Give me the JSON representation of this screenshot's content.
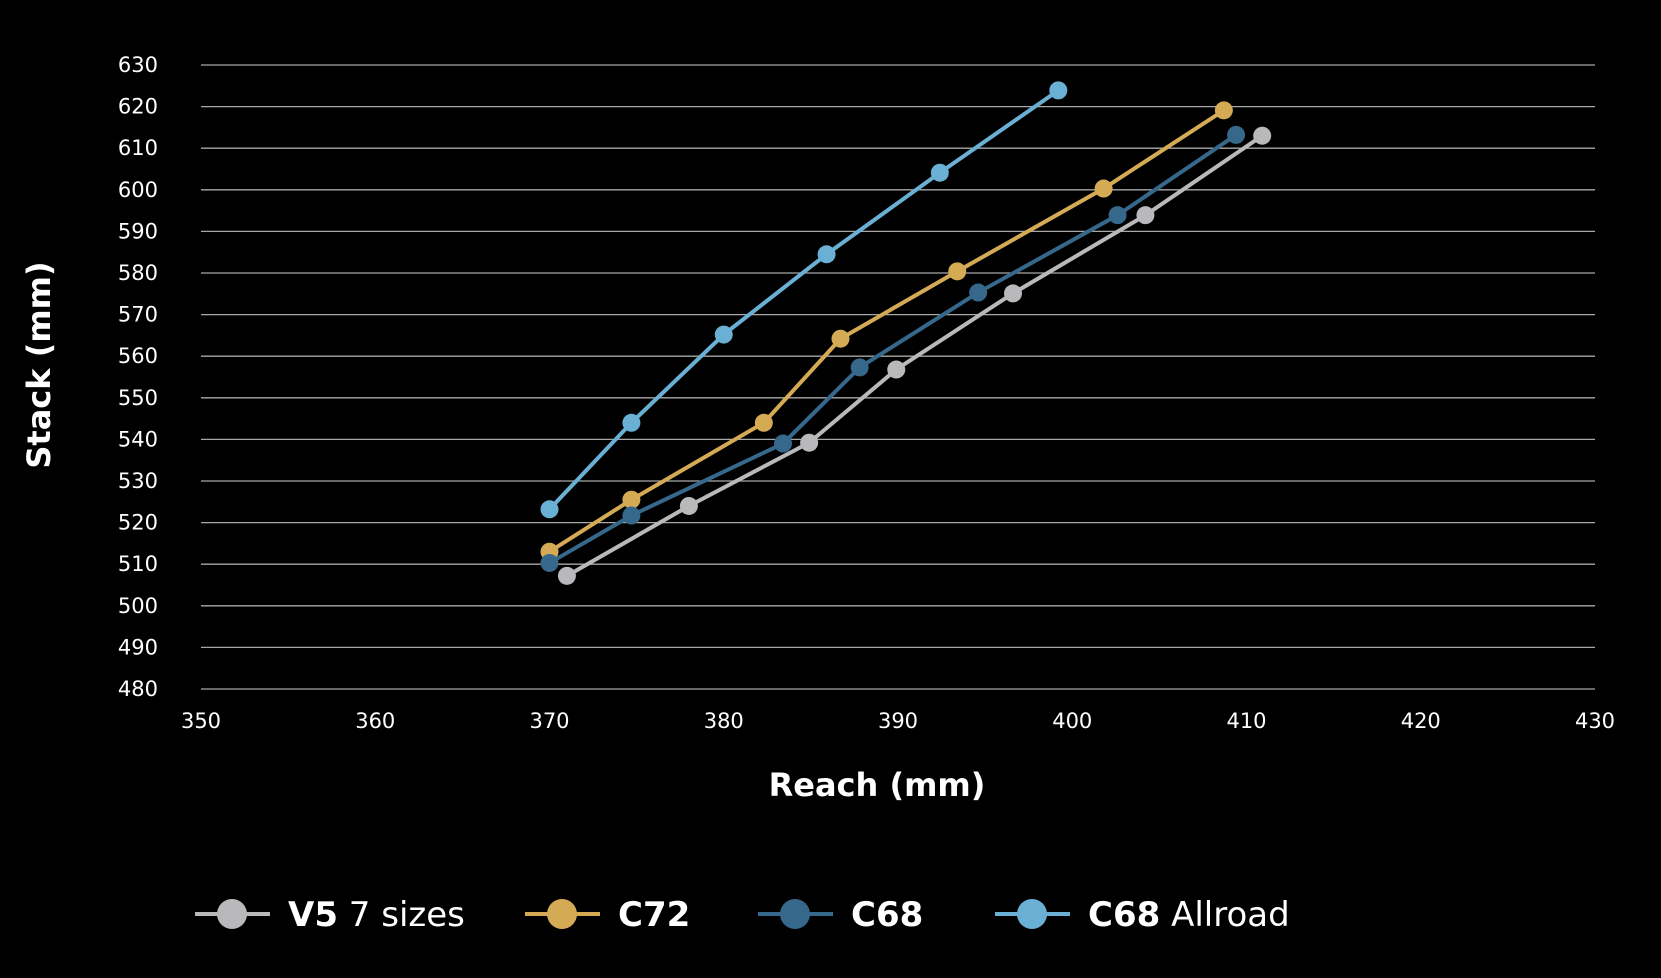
{
  "chart_data": {
    "type": "line",
    "title": "",
    "xlabel": "Reach (mm)",
    "ylabel": "Stack (mm)",
    "xlim": [
      350,
      430
    ],
    "ylim": [
      480,
      630
    ],
    "xticks": [
      350,
      360,
      370,
      380,
      390,
      400,
      410,
      420,
      430
    ],
    "yticks": [
      480,
      490,
      500,
      510,
      520,
      530,
      540,
      550,
      560,
      570,
      580,
      590,
      600,
      610,
      620,
      630
    ],
    "grid": "horizontal",
    "legend_position": "bottom",
    "series": [
      {
        "name": "V5 7 sizes",
        "name_bold": "V5",
        "name_rest": " 7 sizes",
        "color": "#b9b9bb",
        "x": [
          371.0,
          378.0,
          384.9,
          389.9,
          396.6,
          404.2,
          410.9
        ],
        "y": [
          507.2,
          524.0,
          539.2,
          556.8,
          575.1,
          593.9,
          613.0
        ]
      },
      {
        "name": "C72",
        "name_bold": "C72",
        "name_rest": "",
        "color": "#d4aa55",
        "x": [
          370.0,
          374.7,
          382.3,
          386.7,
          393.4,
          401.8,
          408.7
        ],
        "y": [
          513.0,
          525.5,
          544.0,
          564.2,
          580.4,
          600.3,
          619.1
        ]
      },
      {
        "name": "C68",
        "name_bold": "C68",
        "name_rest": "",
        "color": "#35688a",
        "x": [
          370.0,
          374.7,
          383.4,
          387.8,
          394.6,
          402.6,
          409.4
        ],
        "y": [
          510.3,
          521.7,
          539.0,
          557.3,
          575.3,
          593.9,
          613.2
        ]
      },
      {
        "name": "C68 Allroad",
        "name_bold": "C68",
        "name_rest": " Allroad",
        "color": "#6aafd4",
        "x": [
          370.0,
          374.7,
          380.0,
          385.9,
          392.4,
          399.2
        ],
        "y": [
          523.2,
          544.0,
          565.2,
          584.5,
          604.1,
          623.9
        ]
      }
    ]
  }
}
